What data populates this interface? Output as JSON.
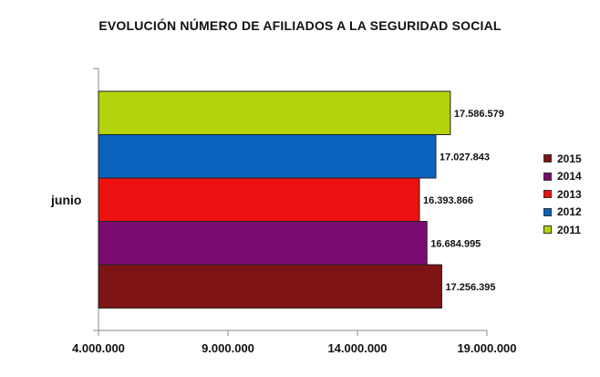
{
  "chart_data": {
    "type": "bar",
    "orientation": "horizontal",
    "title": "EVOLUCIÓN NÚMERO DE AFILIADOS A LA SEGURIDAD SOCIAL",
    "categories": [
      "junio"
    ],
    "xlim": [
      4000000,
      19000000
    ],
    "x_ticks": [
      4000000,
      9000000,
      14000000,
      19000000
    ],
    "x_tick_labels": [
      "4.000.000",
      "9.000.000",
      "14.000.000",
      "19.000.000"
    ],
    "grid": false,
    "legend_position": "right",
    "series": [
      {
        "name": "2011",
        "values": [
          17586579
        ],
        "label": "17.586.579",
        "color": "#b5d30a"
      },
      {
        "name": "2012",
        "values": [
          17027843
        ],
        "label": "17.027.843",
        "color": "#0a63bf"
      },
      {
        "name": "2013",
        "values": [
          16393866
        ],
        "label": "16.393.866",
        "color": "#ee1111"
      },
      {
        "name": "2014",
        "values": [
          16684995
        ],
        "label": "16.684.995",
        "color": "#7a0a6e"
      },
      {
        "name": "2015",
        "values": [
          17256395
        ],
        "label": "17.256.395",
        "color": "#7e1414"
      }
    ],
    "legend_order": [
      "2015",
      "2014",
      "2013",
      "2012",
      "2011"
    ]
  }
}
